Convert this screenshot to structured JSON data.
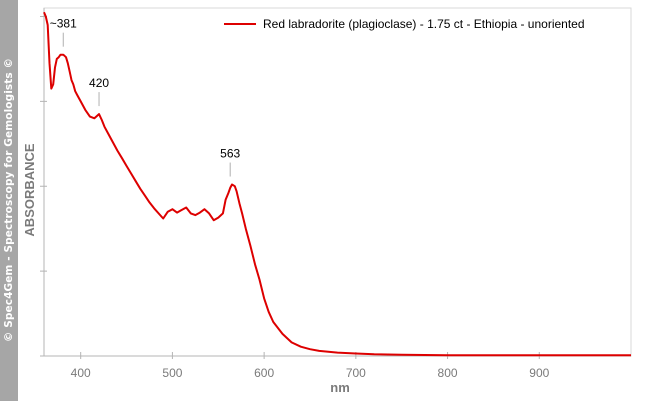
{
  "watermark": "© Spec4Gem - Spectroscopy for Gemologists ©",
  "colors": {
    "series": "#dd0000",
    "axis": "#b4b4b4",
    "text_muted": "#7a7a7a",
    "watermark_bg": "#a6a6a6"
  },
  "chart_data": {
    "type": "line",
    "title": "",
    "xlabel": "nm",
    "ylabel": "ABSORBANCE",
    "xlim": [
      360,
      1000
    ],
    "ylim": [
      0,
      4.1
    ],
    "x_ticks": [
      400,
      500,
      600,
      700,
      800,
      900
    ],
    "y_ticks": [
      0,
      1,
      2,
      3,
      4
    ],
    "y_tick_labels_shown": false,
    "grid": false,
    "legend": {
      "position": "top-right",
      "entries": [
        "Red labradorite (plagioclase) - 1.75 ct - Ethiopia - unoriented"
      ]
    },
    "series": [
      {
        "name": "Red labradorite (plagioclase) - 1.75 ct - Ethiopia - unoriented",
        "color": "#dd0000",
        "x": [
          360,
          362,
          364,
          366,
          368,
          370,
          372,
          374,
          376,
          378,
          381,
          384,
          386,
          388,
          390,
          392,
          394,
          396,
          400,
          405,
          410,
          415,
          420,
          423,
          426,
          430,
          435,
          440,
          445,
          450,
          455,
          460,
          465,
          470,
          475,
          480,
          485,
          490,
          495,
          500,
          505,
          510,
          515,
          520,
          525,
          530,
          535,
          540,
          545,
          550,
          555,
          558,
          561,
          563,
          565,
          568,
          570,
          573,
          576,
          580,
          585,
          590,
          595,
          600,
          605,
          610,
          620,
          630,
          640,
          650,
          660,
          680,
          700,
          720,
          750,
          800,
          850,
          900,
          950,
          1000
        ],
        "y": [
          4.05,
          4.0,
          3.9,
          3.45,
          3.15,
          3.2,
          3.4,
          3.5,
          3.52,
          3.55,
          3.55,
          3.52,
          3.45,
          3.35,
          3.25,
          3.2,
          3.12,
          3.08,
          3.0,
          2.9,
          2.82,
          2.8,
          2.85,
          2.78,
          2.7,
          2.62,
          2.52,
          2.42,
          2.33,
          2.24,
          2.15,
          2.06,
          1.97,
          1.89,
          1.81,
          1.74,
          1.68,
          1.62,
          1.7,
          1.73,
          1.69,
          1.72,
          1.75,
          1.68,
          1.66,
          1.69,
          1.73,
          1.68,
          1.6,
          1.63,
          1.68,
          1.84,
          1.92,
          1.98,
          2.02,
          2.0,
          1.94,
          1.8,
          1.68,
          1.5,
          1.3,
          1.08,
          0.9,
          0.68,
          0.52,
          0.4,
          0.26,
          0.16,
          0.11,
          0.08,
          0.06,
          0.04,
          0.03,
          0.02,
          0.015,
          0.01,
          0.01,
          0.01,
          0.01,
          0.01
        ]
      }
    ],
    "annotations": [
      {
        "text": "~381",
        "x": 381,
        "y": 3.55
      },
      {
        "text": "420",
        "x": 420,
        "y": 2.85
      },
      {
        "text": "563",
        "x": 563,
        "y": 2.02
      }
    ]
  }
}
